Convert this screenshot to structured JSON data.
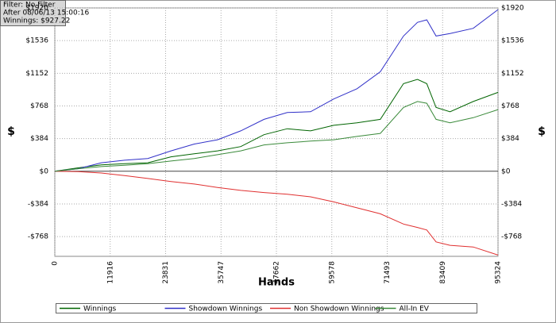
{
  "chart_data": {
    "type": "line",
    "annotations": [
      "Filter: No Filter",
      "After 08/06/13 15:00:16",
      "Winnings: $927.22"
    ],
    "xlabel": "Hands",
    "ylabel": "$",
    "x": [
      0,
      5000,
      10000,
      15000,
      20000,
      25000,
      30000,
      35000,
      40000,
      45000,
      50000,
      55000,
      60000,
      65000,
      70000,
      75000,
      78000,
      80000,
      82000,
      85000,
      90000,
      95324
    ],
    "series": [
      {
        "name": "Winnings",
        "color": "#006400",
        "values": [
          0,
          40,
          75,
          90,
          100,
          170,
          205,
          240,
          290,
          430,
          500,
          475,
          540,
          570,
          610,
          1030,
          1080,
          1030,
          750,
          700,
          820,
          927.22
        ]
      },
      {
        "name": "Showdown Winnings",
        "color": "#3030c8",
        "values": [
          0,
          30,
          100,
          130,
          150,
          240,
          320,
          370,
          475,
          610,
          690,
          700,
          850,
          970,
          1170,
          1590,
          1750,
          1780,
          1590,
          1620,
          1680,
          1900
        ]
      },
      {
        "name": "Non Showdown Winnings",
        "color": "#e03030",
        "values": [
          0,
          -5,
          -20,
          -50,
          -85,
          -120,
          -150,
          -190,
          -225,
          -250,
          -270,
          -300,
          -360,
          -430,
          -500,
          -620,
          -660,
          -690,
          -830,
          -870,
          -890,
          -985
        ]
      },
      {
        "name": "All-In EV",
        "color": "#3a8a3a",
        "values": [
          0,
          30,
          55,
          70,
          90,
          120,
          150,
          195,
          240,
          310,
          335,
          355,
          370,
          410,
          445,
          750,
          820,
          800,
          610,
          570,
          630,
          725
        ]
      }
    ],
    "xlim": [
      0,
      95324
    ],
    "xticks": [
      0,
      11916,
      23831,
      35747,
      47662,
      59578,
      71493,
      83409,
      95324
    ],
    "ylim": [
      -1000,
      1920
    ],
    "yticks": [
      {
        "value": -768,
        "label": "-$768"
      },
      {
        "value": -384,
        "label": "-$384"
      },
      {
        "value": 0,
        "label": "$0"
      },
      {
        "value": 384,
        "label": "$384"
      },
      {
        "value": 768,
        "label": "$768"
      },
      {
        "value": 1152,
        "label": "$1152"
      },
      {
        "value": 1536,
        "label": "$1536"
      },
      {
        "value": 1920,
        "label": "$1920"
      }
    ],
    "grid": true
  }
}
